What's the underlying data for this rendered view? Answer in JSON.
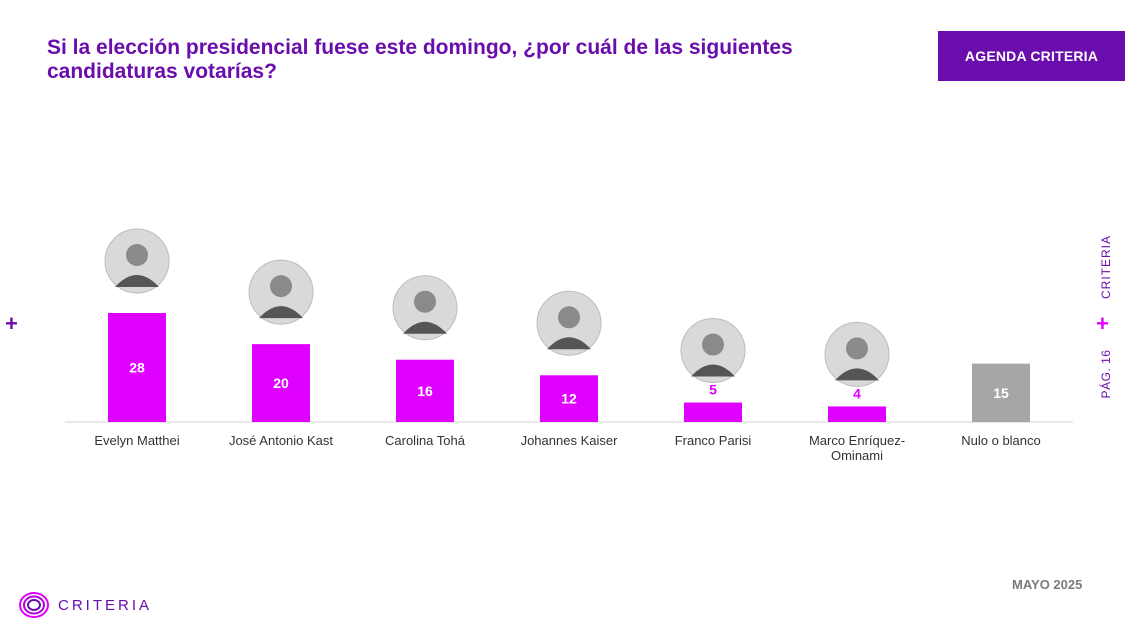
{
  "header": {
    "title": "Si la elección presidencial fuese este domingo, ¿por cuál de las siguientes candidaturas votarías?",
    "badge": "AGENDA CRITERIA"
  },
  "side": {
    "brand": "CRITERIA",
    "page": "PÁG. 16"
  },
  "footer": {
    "date": "MAYO 2025",
    "logo_text": "CRITERIA"
  },
  "colors": {
    "accent": "#6a0dad",
    "bar": "#e000ff",
    "bar_other": "#a6a6a6"
  },
  "chart_data": {
    "type": "bar",
    "categories": [
      "Evelyn Matthei",
      "José Antonio Kast",
      "Carolina Tohá",
      "Johannes Kaiser",
      "Franco Parisi",
      "Marco Enríquez-Ominami",
      "Nulo o blanco"
    ],
    "label_lines": [
      [
        "Evelyn Matthei"
      ],
      [
        "José Antonio Kast"
      ],
      [
        "Carolina Tohá"
      ],
      [
        "Johannes Kaiser"
      ],
      [
        "Franco Parisi"
      ],
      [
        "Marco Enríquez-",
        "Ominami"
      ],
      [
        "Nulo o blanco"
      ]
    ],
    "values": [
      28,
      20,
      16,
      12,
      5,
      4,
      15
    ],
    "bar_colors": [
      "#e000ff",
      "#e000ff",
      "#e000ff",
      "#e000ff",
      "#e000ff",
      "#e000ff",
      "#a6a6a6"
    ],
    "photos": [
      true,
      true,
      true,
      true,
      true,
      true,
      false
    ],
    "ylim": [
      0,
      28
    ]
  }
}
